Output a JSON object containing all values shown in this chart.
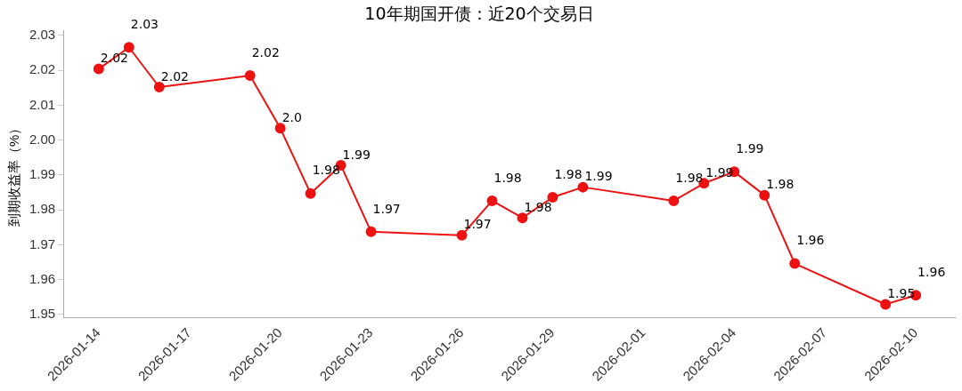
{
  "chart_data": {
    "type": "line",
    "title": "10年期国开债：近20个交易日",
    "ylabel": "到期收益率（%）",
    "x": [
      "2026-01-14",
      "2026-01-15",
      "2026-01-16",
      "2026-01-19",
      "2026-01-20",
      "2026-01-21",
      "2026-01-22",
      "2026-01-23",
      "2026-01-26",
      "2026-01-27",
      "2026-01-28",
      "2026-01-29",
      "2026-01-30",
      "2026-02-02",
      "2026-02-03",
      "2026-02-04",
      "2026-02-05",
      "2026-02-06",
      "2026-02-09",
      "2026-02-10"
    ],
    "series": [
      {
        "color": "#ee1111",
        "values": [
          2.0204,
          2.0266,
          2.0152,
          2.0185,
          2.0034,
          1.9847,
          1.9928,
          1.9737,
          1.9727,
          1.9826,
          1.9777,
          1.9836,
          1.9865,
          1.9826,
          1.9876,
          1.9909,
          1.9842,
          1.9646,
          1.9529,
          1.9555
        ],
        "value_labels": [
          "2.02",
          "2.03",
          "2.02",
          "2.02",
          "2.0",
          "1.98",
          "1.99",
          "1.97",
          "1.97",
          "1.98",
          "1.98",
          "1.98",
          "1.99",
          "1.98",
          "1.99",
          "1.99",
          "1.98",
          "1.96",
          "1.95",
          "1.96"
        ]
      }
    ],
    "xlim": [
      "2026-01-12T20:00",
      "2026-02-11T07:00"
    ],
    "xticks": [
      "2026-01-14",
      "2026-01-17",
      "2026-01-20",
      "2026-01-23",
      "2026-01-26",
      "2026-01-29",
      "2026-02-01",
      "2026-02-04",
      "2026-02-07",
      "2026-02-10"
    ],
    "ylim": [
      1.9492,
      2.0313
    ],
    "yticks": [
      1.95,
      1.96,
      1.97,
      1.98,
      1.99,
      {
        "value": 2,
        "label": "2.00"
      },
      2.01,
      2.02,
      2.03
    ],
    "grid": false,
    "legend": false,
    "marker": "circle",
    "line_style": "solid"
  }
}
